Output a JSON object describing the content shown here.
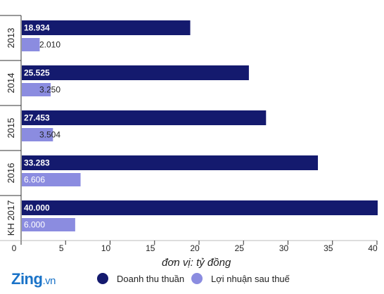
{
  "chart_data": {
    "type": "bar",
    "orientation": "horizontal",
    "categories": [
      "2013",
      "2014",
      "2015",
      "2016",
      "KH 2017"
    ],
    "series": [
      {
        "name": "Doanh thu thuần",
        "values": [
          18.934,
          25.525,
          27.453,
          33.283,
          40.0
        ],
        "labels": [
          "18.934",
          "25.525",
          "27.453",
          "33.283",
          "40.000"
        ],
        "color": "#141a6e"
      },
      {
        "name": "Lợi nhuận sau thuế",
        "values": [
          2.01,
          3.25,
          3.504,
          6.606,
          6.0
        ],
        "labels": [
          "2.010",
          "3.250",
          "3.504",
          "6.606",
          "6.000"
        ],
        "color": "#8b8ce0"
      }
    ],
    "xlim": [
      0,
      40
    ],
    "xticks": [
      "0",
      "5",
      "10",
      "15",
      "20",
      "25",
      "30",
      "35",
      "40"
    ],
    "unit_note": "đơn vị: tỷ đồng",
    "grid": false,
    "legend_position": "bottom"
  },
  "brand": {
    "logo_main": "Zing",
    "logo_suffix": ".vn"
  }
}
